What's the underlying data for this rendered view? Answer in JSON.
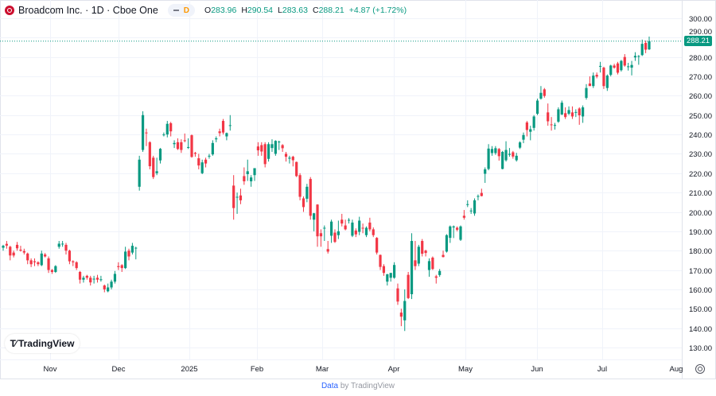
{
  "header": {
    "symbol_title": "Broadcom Inc. · 1D · Cboe One",
    "interval_badge": "D",
    "open_label": "O",
    "open": "283.96",
    "high_label": "H",
    "high": "290.54",
    "low_label": "L",
    "low": "283.63",
    "close_label": "C",
    "close": "288.21",
    "change": "+4.87 (+1.72%)"
  },
  "last_price_label": "288.21",
  "brand_logo": "TradingView",
  "footer": {
    "data_link": "Data",
    "by_text": "by TradingView"
  },
  "colors": {
    "up": "#089981",
    "down": "#f23645",
    "logo": "#cc0f2f",
    "interval": "#ff9800"
  },
  "icons": {
    "settings": "gear-icon",
    "symbol": "broadcom-logo-icon"
  },
  "chart_data": {
    "type": "candlestick",
    "title": "",
    "xlabel": "",
    "ylabel": "",
    "grid": true,
    "x_tick_labels": [
      "Nov",
      "Dec",
      "2025",
      "Feb",
      "Mar",
      "Apr",
      "May",
      "Jun",
      "Jul",
      "Aug"
    ],
    "y_ticks": [
      130,
      140,
      150,
      160,
      170,
      180,
      190,
      200,
      210,
      220,
      230,
      240,
      250,
      260,
      270,
      280,
      290,
      300
    ],
    "y_tick_labels": [
      "130.00",
      "140.00",
      "150.00",
      "160.00",
      "170.00",
      "180.00",
      "190.00",
      "200.00",
      "210.00",
      "220.00",
      "230.00",
      "240.00",
      "250.00",
      "260.00",
      "270.00",
      "280.00",
      "290.00",
      "300.00"
    ],
    "last_price": 288.21,
    "ohlc_fields": [
      "open",
      "high",
      "low",
      "close"
    ],
    "candles": [
      [
        181.5,
        183,
        180,
        182.5
      ],
      [
        183.5,
        185,
        181,
        182.6
      ],
      [
        182,
        182.5,
        175,
        177.5
      ],
      [
        179,
        180,
        176.5,
        177.5
      ],
      [
        183,
        184.5,
        180,
        181.2
      ],
      [
        180.5,
        182.5,
        179.5,
        180
      ],
      [
        179.8,
        181,
        178,
        179
      ],
      [
        178.5,
        179,
        173,
        175
      ],
      [
        175,
        176,
        171.5,
        173
      ],
      [
        174.5,
        176,
        172,
        174
      ],
      [
        174,
        174.5,
        172,
        173
      ],
      [
        172.5,
        180,
        172,
        178.5
      ],
      [
        178,
        178.8,
        176.5,
        177
      ],
      [
        176,
        177,
        168.5,
        170
      ],
      [
        170,
        170.5,
        168,
        169
      ],
      [
        169,
        172.5,
        168.5,
        172
      ],
      [
        182,
        185,
        181,
        183.6
      ],
      [
        183.5,
        185,
        182,
        183.6
      ],
      [
        183,
        184,
        178,
        180
      ],
      [
        180,
        180.5,
        173,
        174.5
      ],
      [
        174.5,
        175,
        172,
        174
      ],
      [
        174,
        174.5,
        170,
        171
      ],
      [
        169,
        169.5,
        163,
        165
      ],
      [
        165,
        167,
        163.5,
        166
      ],
      [
        167,
        167.5,
        165,
        166
      ],
      [
        166,
        167,
        162,
        163.6
      ],
      [
        165.5,
        167,
        163,
        165.5
      ],
      [
        166,
        167.5,
        163.5,
        165
      ],
      [
        165,
        167,
        164,
        165.2
      ],
      [
        162,
        162.5,
        158.5,
        160
      ],
      [
        159,
        163,
        158.5,
        161
      ],
      [
        161,
        165,
        160,
        164
      ],
      [
        164,
        169.5,
        163,
        168
      ],
      [
        172,
        174,
        170,
        171.5
      ],
      [
        172.5,
        173,
        169,
        171
      ],
      [
        171,
        182,
        170.5,
        179.5
      ],
      [
        180,
        181,
        175,
        177
      ],
      [
        179,
        184,
        178,
        182.5
      ],
      [
        181.5,
        182,
        175.5,
        181.5
      ],
      [
        213,
        229,
        211,
        227
      ],
      [
        232,
        252,
        231,
        250
      ],
      [
        241,
        243,
        234,
        240.7
      ],
      [
        236,
        236.5,
        222,
        223.6
      ],
      [
        228,
        229,
        217,
        218
      ],
      [
        220,
        228,
        219,
        221
      ],
      [
        226.6,
        233,
        225,
        232.6
      ],
      [
        240,
        241,
        239,
        240
      ],
      [
        240,
        247,
        238.5,
        245.5
      ],
      [
        245.8,
        246.5,
        239,
        241.6
      ],
      [
        235,
        237,
        233,
        235.6
      ],
      [
        236,
        238,
        232,
        232.5
      ],
      [
        236,
        237.5,
        230.5,
        232
      ],
      [
        237,
        240.5,
        236,
        236.6
      ],
      [
        233.5,
        238,
        232.5,
        233.5
      ],
      [
        239.6,
        240,
        228,
        228.4
      ],
      [
        230.5,
        231,
        228.5,
        230
      ],
      [
        227.7,
        230,
        222,
        224
      ],
      [
        220,
        227,
        219.5,
        225.6
      ],
      [
        227,
        228,
        223,
        225
      ],
      [
        228.6,
        230,
        227.5,
        229
      ],
      [
        229.7,
        237,
        229,
        235.6
      ],
      [
        237.5,
        239,
        236,
        238
      ],
      [
        241.6,
        243,
        239,
        240.7
      ],
      [
        247,
        248,
        240,
        241
      ],
      [
        239,
        241,
        237,
        240.7
      ],
      [
        244.5,
        250,
        242,
        244.8
      ],
      [
        213.6,
        219,
        196,
        202
      ],
      [
        207.8,
        210,
        199,
        207.8
      ],
      [
        208.5,
        212,
        204,
        206
      ],
      [
        218.5,
        223,
        214,
        215.8
      ],
      [
        219.5,
        227,
        216,
        221
      ],
      [
        215.8,
        219,
        213,
        217.8
      ],
      [
        219,
        222.6,
        216,
        222.6
      ],
      [
        233.8,
        236,
        229,
        231.8
      ],
      [
        234.5,
        236,
        229,
        231.2
      ],
      [
        235,
        236,
        223,
        224.7
      ],
      [
        227.4,
        236,
        226,
        235
      ],
      [
        233,
        237.5,
        231,
        235
      ],
      [
        230,
        237,
        229,
        236.7
      ],
      [
        236,
        236.8,
        232,
        236.3
      ],
      [
        234.5,
        235,
        231,
        232.9
      ],
      [
        230,
        231,
        226,
        228.5
      ],
      [
        227.5,
        229,
        225,
        228
      ],
      [
        228.5,
        229,
        223.5,
        226.7
      ],
      [
        225.8,
        226,
        218,
        218.5
      ],
      [
        219,
        220,
        206,
        207.8
      ],
      [
        207,
        208,
        200,
        202.5
      ],
      [
        206.8,
        214.5,
        205,
        213
      ],
      [
        217,
        218,
        196,
        198
      ],
      [
        196,
        199.5,
        190,
        199.3
      ],
      [
        203.8,
        204,
        182,
        187.4
      ],
      [
        189,
        191,
        182,
        187.4
      ],
      [
        191.8,
        193,
        185,
        191.8
      ],
      [
        180.8,
        185,
        178.5,
        179.5
      ],
      [
        187.7,
        196,
        184,
        195
      ],
      [
        189.3,
        191,
        184,
        184.5
      ],
      [
        188,
        195.5,
        186,
        190
      ],
      [
        196,
        199,
        192.5,
        194
      ],
      [
        193,
        196,
        190.5,
        191
      ],
      [
        195.9,
        196.8,
        194,
        195.9
      ],
      [
        187.7,
        196,
        187,
        194.5
      ],
      [
        190.4,
        191.5,
        187,
        188.4
      ],
      [
        189.7,
        197.5,
        188,
        195.5
      ],
      [
        191.8,
        194,
        189,
        191.4
      ],
      [
        188,
        192.5,
        187,
        191.8
      ],
      [
        194.5,
        197,
        190,
        191
      ],
      [
        191,
        192,
        187,
        188
      ],
      [
        186.6,
        187,
        178,
        179
      ],
      [
        177.8,
        178,
        170,
        171.6
      ],
      [
        172,
        173,
        167,
        168.5
      ],
      [
        164,
        168,
        162,
        167.8
      ],
      [
        166,
        168.5,
        164,
        168.5
      ],
      [
        166,
        174,
        165.5,
        172.6
      ],
      [
        160.5,
        163,
        152,
        153.7
      ],
      [
        148,
        150,
        141,
        145.9
      ],
      [
        144,
        160,
        138.5,
        154
      ],
      [
        167.5,
        169,
        155,
        155.5
      ],
      [
        157.5,
        189,
        155,
        185
      ],
      [
        175,
        185,
        170,
        172
      ],
      [
        173.3,
        183,
        172,
        182
      ],
      [
        185,
        186,
        177,
        178.4
      ],
      [
        180,
        180.5,
        177,
        178.8
      ],
      [
        170,
        176,
        166.5,
        174.6
      ],
      [
        176.4,
        177,
        170,
        170.5
      ],
      [
        166.7,
        167.5,
        163,
        166
      ],
      [
        167.4,
        170.5,
        166.5,
        169.5
      ],
      [
        177.8,
        180,
        176.5,
        176.7
      ],
      [
        179.5,
        188.5,
        179,
        188
      ],
      [
        186.6,
        193,
        184,
        192.5
      ],
      [
        192,
        193,
        186.5,
        192.5
      ],
      [
        191.8,
        192.5,
        190,
        190.8
      ],
      [
        185.6,
        193,
        185,
        192.5
      ],
      [
        198,
        201,
        196,
        197
      ],
      [
        203.8,
        206,
        202.5,
        204
      ],
      [
        200.4,
        202,
        199,
        200.7
      ],
      [
        199.2,
        207,
        198,
        206
      ],
      [
        208,
        209,
        206,
        208.2
      ],
      [
        209.8,
        212,
        208,
        208.2
      ],
      [
        219.7,
        223,
        215,
        222
      ],
      [
        222.2,
        235,
        221.5,
        232.7
      ],
      [
        230.4,
        234,
        229,
        232.5
      ],
      [
        230.4,
        234,
        229.5,
        232.9
      ],
      [
        232.5,
        233,
        226.5,
        228.8
      ],
      [
        222.2,
        231.5,
        222,
        231
      ],
      [
        226.7,
        236.5,
        226,
        232
      ],
      [
        229.5,
        233,
        228.5,
        230
      ],
      [
        230.8,
        231.5,
        227.5,
        228.6
      ],
      [
        226.7,
        230.5,
        226,
        229
      ],
      [
        233.2,
        236.5,
        232.5,
        235.9
      ],
      [
        237.3,
        241,
        235.5,
        239.7
      ],
      [
        246.2,
        247,
        239,
        242.3
      ],
      [
        241.4,
        244.5,
        237,
        242.7
      ],
      [
        243.4,
        250,
        242,
        249.3
      ],
      [
        250.7,
        258.5,
        250,
        257.5
      ],
      [
        258.5,
        265,
        258,
        261.5
      ],
      [
        263.3,
        264,
        259,
        259.9
      ],
      [
        251.4,
        256,
        244.5,
        246.8
      ],
      [
        245.2,
        249,
        242,
        244.8
      ],
      [
        244.8,
        246,
        242.5,
        244.9
      ],
      [
        246.6,
        254,
        246,
        253
      ],
      [
        250.3,
        257.5,
        250,
        256.4
      ],
      [
        251,
        254,
        248,
        249
      ],
      [
        250.7,
        254.5,
        250,
        252.6
      ],
      [
        251.4,
        254.5,
        248,
        249.3
      ],
      [
        251.4,
        253,
        249,
        251.6
      ],
      [
        253.4,
        254,
        245,
        249.9
      ],
      [
        249.3,
        255,
        246,
        254
      ],
      [
        258.9,
        266,
        258,
        264
      ],
      [
        266.3,
        270,
        265,
        265
      ],
      [
        265,
        272,
        264,
        270.4
      ],
      [
        270.8,
        272,
        269,
        269.9
      ],
      [
        275,
        277.5,
        272,
        275.4
      ],
      [
        274.5,
        275,
        263.5,
        265
      ],
      [
        264,
        271,
        262.5,
        270.4
      ],
      [
        270.8,
        276,
        270,
        275.6
      ],
      [
        275.6,
        276.5,
        274,
        274.5
      ],
      [
        276.7,
        277.5,
        271,
        271.9
      ],
      [
        273.2,
        278.5,
        272.5,
        278
      ],
      [
        280,
        281.5,
        275,
        275.6
      ],
      [
        275,
        277,
        273,
        275.2
      ],
      [
        274.5,
        278,
        270.5,
        275.9
      ],
      [
        279.8,
        282.5,
        278,
        280.6
      ],
      [
        280.2,
        281,
        276,
        280.5
      ],
      [
        281,
        289,
        280.5,
        286.8
      ],
      [
        287.3,
        288.5,
        282,
        283.8
      ],
      [
        283.96,
        290.54,
        283.63,
        288.21
      ]
    ]
  }
}
